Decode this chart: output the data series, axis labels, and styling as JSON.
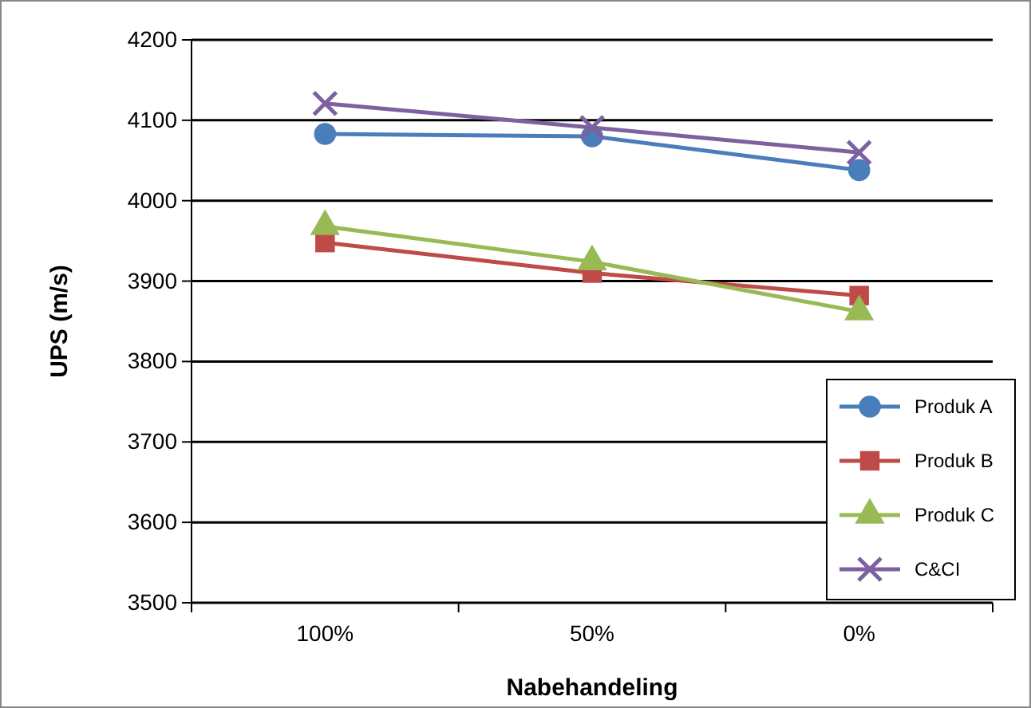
{
  "chart_data": {
    "type": "line",
    "xlabel": "Nabehandeling",
    "ylabel": "UPS (m/s)",
    "categories": [
      "100%",
      "50%",
      "0%"
    ],
    "ylim": [
      3500,
      4200
    ],
    "yticks": [
      3500,
      3600,
      3700,
      3800,
      3900,
      4000,
      4100,
      4200
    ],
    "grid": "y",
    "legend": "right",
    "series": [
      {
        "name": "Produk A",
        "color": "#4a7ebb",
        "marker": "circle",
        "values": [
          4083,
          4080,
          4038
        ]
      },
      {
        "name": "Produk B",
        "color": "#be4b48",
        "marker": "square",
        "values": [
          3948,
          3910,
          3882
        ]
      },
      {
        "name": "Produk C",
        "color": "#98b954",
        "marker": "triangle",
        "values": [
          3968,
          3924,
          3862
        ]
      },
      {
        "name": "C&CI",
        "color": "#7d60a0",
        "marker": "cross",
        "values": [
          4121,
          4091,
          4060
        ]
      }
    ]
  }
}
